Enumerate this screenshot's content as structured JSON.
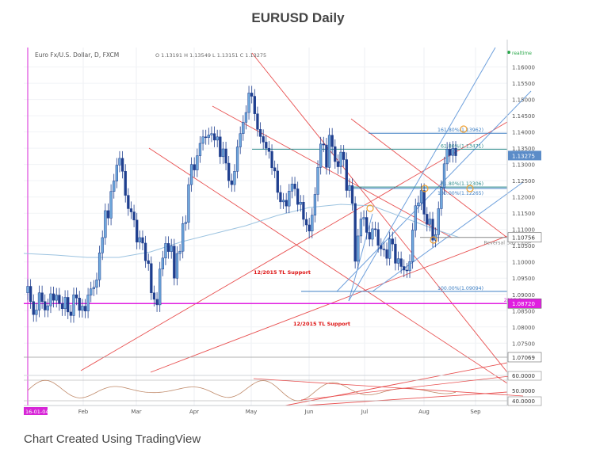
{
  "page_title": "EURUSD Daily",
  "footer": "Chart Created Using TradingView",
  "chart_data": {
    "type": "candlestick",
    "title": "EURUSD Daily",
    "instrument_header": "Euro Fx/U.S. Dollar, D, FXCM",
    "ohlc_header": "O 1.13191  H 1.13549  L 1.13151  C 1.13275",
    "realtime_label": "realtime",
    "ylim": [
      1.068,
      1.166
    ],
    "y_ticks": [
      "1.16000",
      "1.15500",
      "1.15000",
      "1.14500",
      "1.14000",
      "1.13500",
      "1.13000",
      "1.12500",
      "1.12000",
      "1.11500",
      "1.11000",
      "1.10500",
      "1.10000",
      "1.09500",
      "1.09000",
      "1.08500",
      "1.08000",
      "1.07500"
    ],
    "x_ticks": [
      "16-01-04",
      "Feb",
      "Mar",
      "Apr",
      "May",
      "Jun",
      "Jul",
      "Aug",
      "Sep"
    ],
    "last_price_label": "1.13275",
    "price_labels": [
      {
        "value": 1.07069,
        "text": "1.07069",
        "color": "#ffffff"
      },
      {
        "value": 1.10756,
        "text": "1.10756",
        "color": "#ffffff"
      },
      {
        "value": 1.0872,
        "text": "1.08720",
        "color": "#e01ee0"
      }
    ],
    "horizontal_levels": [
      {
        "value": 1.0872,
        "label": "2016 Open",
        "color": "#e01ee0"
      },
      {
        "value": 1.10756,
        "label": "Reversal Day Close",
        "color": "#888888"
      },
      {
        "value": 1.13471,
        "label": "61.80%(1.13471)",
        "color": "#2a8a8a"
      },
      {
        "value": 1.12306,
        "label": "61.80%(1.12306)",
        "color": "#2a8a8a"
      },
      {
        "value": 1.13962,
        "label": "161.80%(1.13962)",
        "color": "#3d7fc4"
      },
      {
        "value": 1.12265,
        "label": "100.00%(1.12265)",
        "color": "#3d7fc4"
      },
      {
        "value": 1.09094,
        "label": "100.00%(1.09094)",
        "color": "#3d7fc4"
      }
    ],
    "annotations": [
      "12/2015 TL Support",
      "12/2015 TL Support"
    ],
    "candles_close": [
      1.0925,
      1.0878,
      1.0838,
      1.0852,
      1.0905,
      1.0878,
      1.0852,
      1.0865,
      1.0902,
      1.0882,
      1.0898,
      1.0872,
      1.0856,
      1.0891,
      1.0846,
      1.0835,
      1.0899,
      1.0889,
      1.0851,
      1.0864,
      1.0849,
      1.0898,
      1.0917,
      1.0922,
      1.0945,
      1.1028,
      1.1075,
      1.1158,
      1.1135,
      1.1217,
      1.1249,
      1.1298,
      1.1319,
      1.1279,
      1.1205,
      1.1164,
      1.1154,
      1.1129,
      1.1061,
      1.1075,
      1.1058,
      1.1004,
      1.0995,
      1.0905,
      1.0885,
      1.0868,
      1.0978,
      1.1012,
      1.1057,
      1.1032,
      1.1049,
      1.095,
      1.1026,
      1.1033,
      1.1118,
      1.1122,
      1.1238,
      1.13,
      1.1283,
      1.1327,
      1.1365,
      1.1385,
      1.1383,
      1.1391,
      1.1395,
      1.1375,
      1.1385,
      1.1324,
      1.1348,
      1.1304,
      1.125,
      1.1238,
      1.1279,
      1.1354,
      1.1395,
      1.143,
      1.146,
      1.152,
      1.151,
      1.1456,
      1.1408,
      1.1386,
      1.1369,
      1.135,
      1.134,
      1.129,
      1.128,
      1.1214,
      1.1185,
      1.119,
      1.1172,
      1.1218,
      1.124,
      1.1225,
      1.1177,
      1.1184,
      1.1131,
      1.1114,
      1.1095,
      1.1144,
      1.1208,
      1.1291,
      1.1363,
      1.136,
      1.1291,
      1.139,
      1.1355,
      1.1309,
      1.1293,
      1.1338,
      1.1315,
      1.122,
      1.1235,
      1.118,
      1.1002,
      1.108,
      1.1132,
      1.1137,
      1.1091,
      1.107,
      1.1102,
      1.11,
      1.1051,
      1.104,
      1.1038,
      1.1011,
      1.1071,
      1.1055,
      1.0996,
      1.101,
      1.0986,
      1.0975,
      1.0973,
      1.1001,
      1.1098,
      1.1173,
      1.1182,
      1.122,
      1.1147,
      1.1116,
      1.1132,
      1.1067,
      1.1084,
      1.1164,
      1.1229,
      1.1302,
      1.1347,
      1.1328,
      1.135,
      1.1327
    ]
  }
}
